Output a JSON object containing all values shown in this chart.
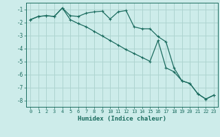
{
  "xlabel": "Humidex (Indice chaleur)",
  "bg_color": "#cdecea",
  "grid_color": "#aed4d0",
  "line_color": "#1a6b5e",
  "x_data": [
    0,
    1,
    2,
    3,
    4,
    5,
    6,
    7,
    8,
    9,
    10,
    11,
    12,
    13,
    14,
    15,
    16,
    17,
    18,
    19,
    20,
    21,
    22,
    23
  ],
  "y_line1": [
    -1.8,
    -1.55,
    -1.5,
    -1.55,
    -0.9,
    -1.5,
    -1.55,
    -1.3,
    -1.2,
    -1.15,
    -1.75,
    -1.2,
    -1.1,
    -2.35,
    -2.5,
    -2.5,
    -3.1,
    -3.5,
    -5.5,
    -6.5,
    -6.7,
    -7.5,
    -7.9,
    -7.6
  ],
  "y_line2": [
    -1.8,
    -1.55,
    -1.5,
    -1.55,
    -0.9,
    -1.8,
    -2.1,
    -2.35,
    -2.7,
    -3.05,
    -3.4,
    -3.75,
    -4.1,
    -4.4,
    -4.7,
    -5.0,
    -3.4,
    -5.5,
    -5.8,
    -6.5,
    -6.7,
    -7.5,
    -7.9,
    -7.6
  ],
  "ylim": [
    -8.5,
    -0.5
  ],
  "xlim": [
    -0.5,
    23.5
  ],
  "yticks": [
    -8,
    -7,
    -6,
    -5,
    -4,
    -3,
    -2,
    -1
  ],
  "xticks": [
    0,
    1,
    2,
    3,
    4,
    5,
    6,
    7,
    8,
    9,
    10,
    11,
    12,
    13,
    14,
    15,
    16,
    17,
    18,
    19,
    20,
    21,
    22,
    23
  ]
}
